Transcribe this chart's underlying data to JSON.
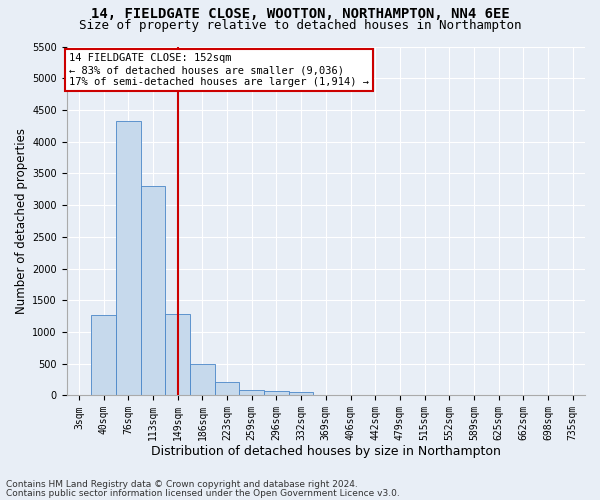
{
  "title1": "14, FIELDGATE CLOSE, WOOTTON, NORTHAMPTON, NN4 6EE",
  "title2": "Size of property relative to detached houses in Northampton",
  "xlabel": "Distribution of detached houses by size in Northampton",
  "ylabel": "Number of detached properties",
  "footnote1": "Contains HM Land Registry data © Crown copyright and database right 2024.",
  "footnote2": "Contains public sector information licensed under the Open Government Licence v3.0.",
  "bar_labels": [
    "3sqm",
    "40sqm",
    "76sqm",
    "113sqm",
    "149sqm",
    "186sqm",
    "223sqm",
    "259sqm",
    "296sqm",
    "332sqm",
    "369sqm",
    "406sqm",
    "442sqm",
    "479sqm",
    "515sqm",
    "552sqm",
    "589sqm",
    "625sqm",
    "662sqm",
    "698sqm",
    "735sqm"
  ],
  "bar_values": [
    0,
    1270,
    4330,
    3300,
    1280,
    490,
    215,
    90,
    65,
    55,
    0,
    0,
    0,
    0,
    0,
    0,
    0,
    0,
    0,
    0,
    0
  ],
  "bar_color": "#c6d9ec",
  "bar_edge_color": "#4a86c8",
  "vline_x_index": 4,
  "vline_color": "#cc0000",
  "ylim_max": 5500,
  "yticks": [
    0,
    500,
    1000,
    1500,
    2000,
    2500,
    3000,
    3500,
    4000,
    4500,
    5000,
    5500
  ],
  "annotation_line1": "14 FIELDGATE CLOSE: 152sqm",
  "annotation_line2": "← 83% of detached houses are smaller (9,036)",
  "annotation_line3": "17% of semi-detached houses are larger (1,914) →",
  "annotation_box_color": "#ffffff",
  "annotation_box_edge": "#cc0000",
  "background_color": "#e8eef6",
  "plot_bg_color": "#e8eef6",
  "grid_color": "#ffffff",
  "title1_fontsize": 10,
  "title2_fontsize": 9,
  "xlabel_fontsize": 9,
  "ylabel_fontsize": 8.5,
  "tick_fontsize": 7,
  "annot_fontsize": 7.5,
  "footnote_fontsize": 6.5
}
